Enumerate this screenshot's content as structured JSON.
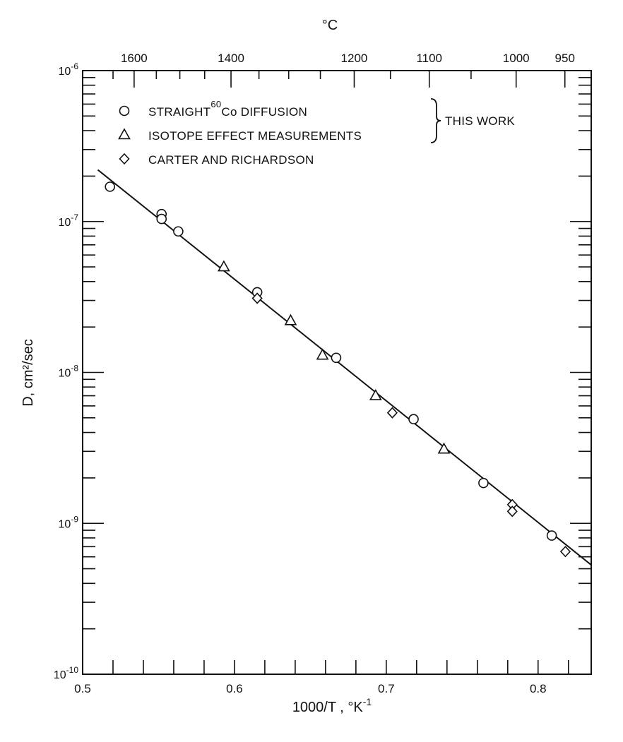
{
  "chart_data": {
    "type": "scatter",
    "xlabel": "1000/T , °K",
    "xlabel_exp": "-1",
    "ylabel": "D, cm²/sec",
    "top_axis_label": "°C",
    "xlim": [
      0.5,
      0.835
    ],
    "ylim": [
      1e-10,
      1e-06
    ],
    "yscale": "log",
    "grid": false,
    "x_ticks": [
      {
        "value": 0.5,
        "label": "0.5"
      },
      {
        "value": 0.6,
        "label": "0.6"
      },
      {
        "value": 0.7,
        "label": "0.7"
      },
      {
        "value": 0.8,
        "label": "0.8"
      }
    ],
    "y_ticks": [
      {
        "value": 1e-10,
        "base": "10",
        "exp": "-10"
      },
      {
        "value": 1e-09,
        "base": "10",
        "exp": "-9"
      },
      {
        "value": 1e-08,
        "base": "10",
        "exp": "-8"
      },
      {
        "value": 1e-07,
        "base": "10",
        "exp": "-7"
      },
      {
        "value": 1e-06,
        "base": "10",
        "exp": "-6"
      }
    ],
    "top_ticks": [
      {
        "celsius": 1600,
        "label": "1600"
      },
      {
        "celsius": 1400,
        "label": "1400"
      },
      {
        "celsius": 1200,
        "label": "1200"
      },
      {
        "celsius": 1100,
        "label": "1100"
      },
      {
        "celsius": 1000,
        "label": "1000"
      },
      {
        "celsius": 950,
        "label": "950"
      }
    ],
    "series": [
      {
        "name": "STRAIGHT ⁶⁰Co DIFFUSION",
        "marker": "circle",
        "points": [
          [
            0.518,
            1.7e-07
          ],
          [
            0.552,
            1.12e-07
          ],
          [
            0.552,
            1.04e-07
          ],
          [
            0.563,
            8.6e-08
          ],
          [
            0.615,
            3.4e-08
          ],
          [
            0.667,
            1.25e-08
          ],
          [
            0.718,
            4.9e-09
          ],
          [
            0.764,
            1.85e-09
          ],
          [
            0.809,
            8.3e-10
          ]
        ]
      },
      {
        "name": "ISOTOPE EFFECT MEASUREMENTS",
        "marker": "triangle",
        "points": [
          [
            0.593,
            5e-08
          ],
          [
            0.637,
            2.2e-08
          ],
          [
            0.658,
            1.3e-08
          ],
          [
            0.693,
            7e-09
          ],
          [
            0.738,
            3.1e-09
          ]
        ]
      },
      {
        "name": "CARTER AND RICHARDSON",
        "marker": "diamond",
        "points": [
          [
            0.615,
            3.1e-08
          ],
          [
            0.704,
            5.4e-09
          ],
          [
            0.783,
            1.33e-09
          ],
          [
            0.783,
            1.2e-09
          ],
          [
            0.818,
            6.5e-10
          ]
        ]
      }
    ],
    "fit_line": {
      "x": [
        0.51,
        0.835
      ],
      "y": [
        2.2e-07,
        5.3e-10
      ]
    },
    "legend": {
      "position": "top-left",
      "bracket_label": "THIS WORK",
      "bracket_covers": [
        0,
        1
      ],
      "entries": [
        {
          "symbol": "circle",
          "text_before": "STRAIGHT",
          "superscript": "60",
          "text_after": "Co   DIFFUSION"
        },
        {
          "symbol": "triangle",
          "text_before": "ISOTOPE EFFECT MEASUREMENTS",
          "superscript": "",
          "text_after": ""
        },
        {
          "symbol": "diamond",
          "text_before": "CARTER AND RICHARDSON",
          "superscript": "",
          "text_after": ""
        }
      ]
    }
  }
}
